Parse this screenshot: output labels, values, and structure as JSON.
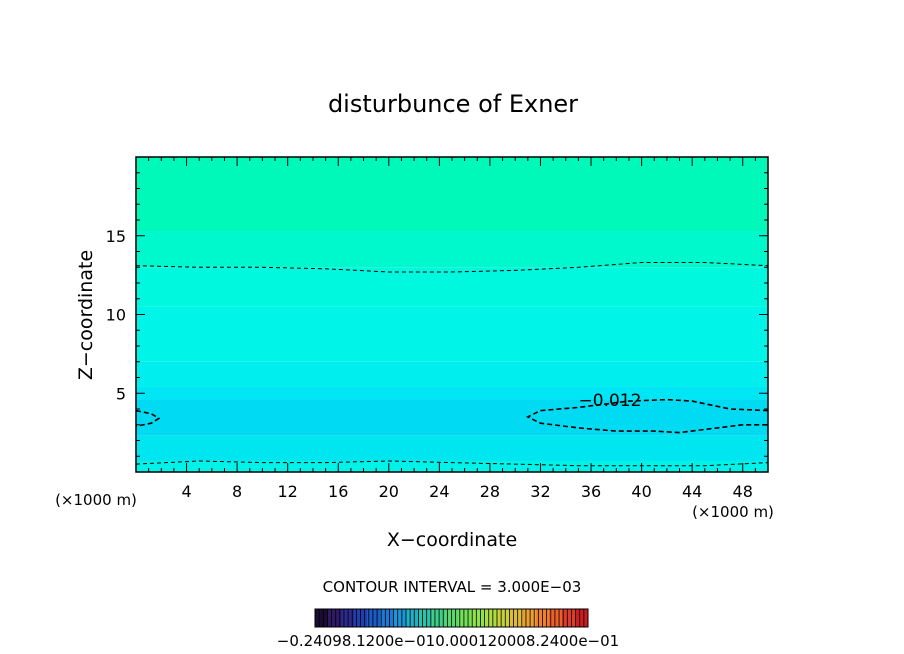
{
  "chart_data": {
    "type": "contour",
    "title": "disturbunce of Exner",
    "xlabel": "X−coordinate",
    "ylabel": "Z−coordinate",
    "x_unit_left": "(×1000 m)",
    "x_unit_right": "(×1000 m)",
    "xlim": [
      0,
      50
    ],
    "ylim": [
      0,
      20
    ],
    "x_ticks": [
      4,
      8,
      12,
      16,
      20,
      24,
      28,
      32,
      36,
      40,
      44,
      48
    ],
    "y_ticks": [
      5,
      10,
      15
    ],
    "contour_interval_text": "CONTOUR INTERVAL = 3.000E−03",
    "contour_labels": [
      {
        "text": "−0.012",
        "x": 37.5,
        "y": 4.2
      }
    ],
    "contours": [
      {
        "level": "upper",
        "points": [
          [
            0,
            13.1
          ],
          [
            5,
            13.0
          ],
          [
            10,
            13.0
          ],
          [
            15,
            12.9
          ],
          [
            20,
            12.7
          ],
          [
            25,
            12.7
          ],
          [
            30,
            12.8
          ],
          [
            35,
            13.0
          ],
          [
            40,
            13.3
          ],
          [
            45,
            13.3
          ],
          [
            50,
            13.1
          ]
        ]
      },
      {
        "level": "lower",
        "points": [
          [
            0,
            0.5
          ],
          [
            5,
            0.7
          ],
          [
            10,
            0.6
          ],
          [
            15,
            0.6
          ],
          [
            20,
            0.7
          ],
          [
            25,
            0.6
          ],
          [
            30,
            0.5
          ],
          [
            35,
            0.4
          ],
          [
            40,
            0.4
          ],
          [
            45,
            0.4
          ],
          [
            50,
            0.6
          ]
        ]
      },
      {
        "level": "-0.012 left",
        "points": [
          [
            0,
            3.9
          ],
          [
            1.2,
            3.7
          ],
          [
            1.8,
            3.4
          ],
          [
            1.2,
            3.1
          ],
          [
            0,
            2.9
          ]
        ]
      },
      {
        "level": "-0.012 right",
        "points": [
          [
            50,
            3.9
          ],
          [
            47,
            4.0
          ],
          [
            44,
            4.5
          ],
          [
            42,
            4.6
          ],
          [
            39,
            4.5
          ],
          [
            35,
            4.1
          ],
          [
            32,
            3.9
          ],
          [
            31,
            3.5
          ],
          [
            32,
            3.1
          ],
          [
            35,
            2.8
          ],
          [
            38,
            2.6
          ],
          [
            41,
            2.6
          ],
          [
            43,
            2.5
          ],
          [
            46,
            2.8
          ],
          [
            48,
            3.0
          ],
          [
            50,
            3.0
          ]
        ]
      }
    ],
    "colorbar": {
      "labels_text": "−0.24098.1200e−010.000120008.2400e−01",
      "colors": [
        "#1a0d33",
        "#2e1a66",
        "#2b2b8f",
        "#1f3fb0",
        "#1b5bc7",
        "#1a7ad6",
        "#1a96d9",
        "#1fb0c6",
        "#2bc4a8",
        "#3fd08a",
        "#57d970",
        "#73e05a",
        "#90e24a",
        "#acdd40",
        "#c8d03a",
        "#e0bb36",
        "#ecA032",
        "#f0822e",
        "#ec602a",
        "#e03a28",
        "#cc1e22"
      ]
    },
    "fill_bands": [
      {
        "z_from": 0,
        "z_to": 0.7,
        "color": "#00f2e8"
      },
      {
        "z_from": 0.7,
        "z_to": 2.3,
        "color": "#00e6f0"
      },
      {
        "z_from": 2.3,
        "z_to": 4.6,
        "color": "#00daf2"
      },
      {
        "z_from": 4.6,
        "z_to": 5.4,
        "color": "#00e6f4"
      },
      {
        "z_from": 5.4,
        "z_to": 7.0,
        "color": "#00eeee"
      },
      {
        "z_from": 7.0,
        "z_to": 10.5,
        "color": "#00f5e8"
      },
      {
        "z_from": 10.5,
        "z_to": 13.0,
        "color": "#00f8de"
      },
      {
        "z_from": 13.0,
        "z_to": 15.3,
        "color": "#00f9cc"
      },
      {
        "z_from": 15.3,
        "z_to": 20,
        "color": "#00f8b8"
      }
    ]
  }
}
